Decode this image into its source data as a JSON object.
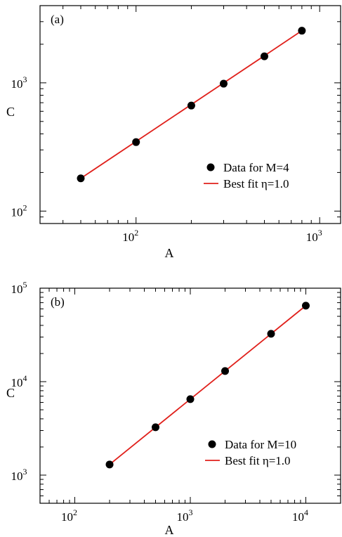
{
  "chart_data": [
    {
      "type": "scatter",
      "panel_label": "(a)",
      "xlabel": "A",
      "ylabel": "C",
      "xscale": "log",
      "yscale": "log",
      "xlim": [
        30,
        1300
      ],
      "ylim": [
        80,
        4000
      ],
      "x_ticks": [
        {
          "base": "10",
          "exp": "2",
          "value": 100
        },
        {
          "base": "10",
          "exp": "3",
          "value": 1000
        }
      ],
      "y_ticks": [
        {
          "base": "10",
          "exp": "2",
          "value": 100
        },
        {
          "base": "10",
          "exp": "3",
          "value": 1000
        }
      ],
      "grid": false,
      "legend_position": "center-right",
      "series": [
        {
          "name": "Data for M=4",
          "kind": "points",
          "color": "#000000",
          "x": [
            50,
            100,
            200,
            300,
            500,
            800
          ],
          "y": [
            180,
            345,
            665,
            985,
            1610,
            2550
          ]
        },
        {
          "name": "Best fit η=1.0",
          "kind": "line",
          "color": "#e0201b",
          "x": [
            50,
            800
          ],
          "y": [
            180,
            2550
          ]
        }
      ]
    },
    {
      "type": "scatter",
      "panel_label": "(b)",
      "xlabel": "A",
      "ylabel": "C",
      "xscale": "log",
      "yscale": "log",
      "xlim": [
        50,
        20000
      ],
      "ylim": [
        500,
        100000
      ],
      "x_ticks": [
        {
          "base": "10",
          "exp": "2",
          "value": 100
        },
        {
          "base": "10",
          "exp": "3",
          "value": 1000
        },
        {
          "base": "10",
          "exp": "4",
          "value": 10000
        }
      ],
      "y_ticks": [
        {
          "base": "10",
          "exp": "3",
          "value": 1000
        },
        {
          "base": "10",
          "exp": "4",
          "value": 10000
        },
        {
          "base": "10",
          "exp": "5",
          "value": 100000
        }
      ],
      "grid": false,
      "legend_position": "bottom-right",
      "series": [
        {
          "name": "Data for M=10",
          "kind": "points",
          "color": "#000000",
          "x": [
            200,
            500,
            1000,
            2000,
            5000,
            10000
          ],
          "y": [
            1300,
            3250,
            6500,
            13000,
            32500,
            65000
          ]
        },
        {
          "name": "Best fit η=1.0",
          "kind": "line",
          "color": "#e0201b",
          "x": [
            200,
            10000
          ],
          "y": [
            1300,
            65000
          ]
        }
      ]
    }
  ]
}
